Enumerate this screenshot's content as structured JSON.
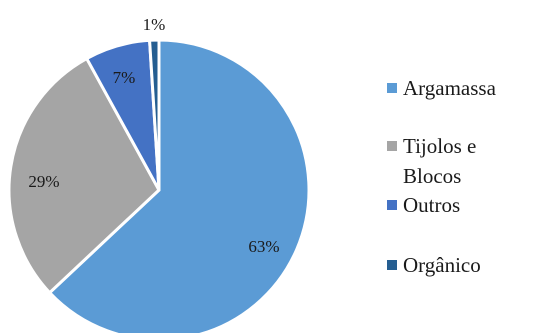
{
  "chart_data": {
    "type": "pie",
    "categories": [
      "Argamassa",
      "Tijolos e Blocos",
      "Outros",
      "Orgânico"
    ],
    "values": [
      63,
      29,
      7,
      1
    ],
    "data_labels": [
      "63%",
      "29%",
      "7%",
      "1%"
    ],
    "legend_lines": [
      [
        "Argamassa"
      ],
      [
        "Tijolos e",
        "Blocos"
      ],
      [
        "Outros"
      ],
      [
        "Orgânico"
      ]
    ],
    "colors": [
      "#5b9bd5",
      "#a5a5a5",
      "#4472c4",
      "#255e91"
    ],
    "legend_position": "right",
    "start": "top",
    "direction": "clockwise"
  }
}
